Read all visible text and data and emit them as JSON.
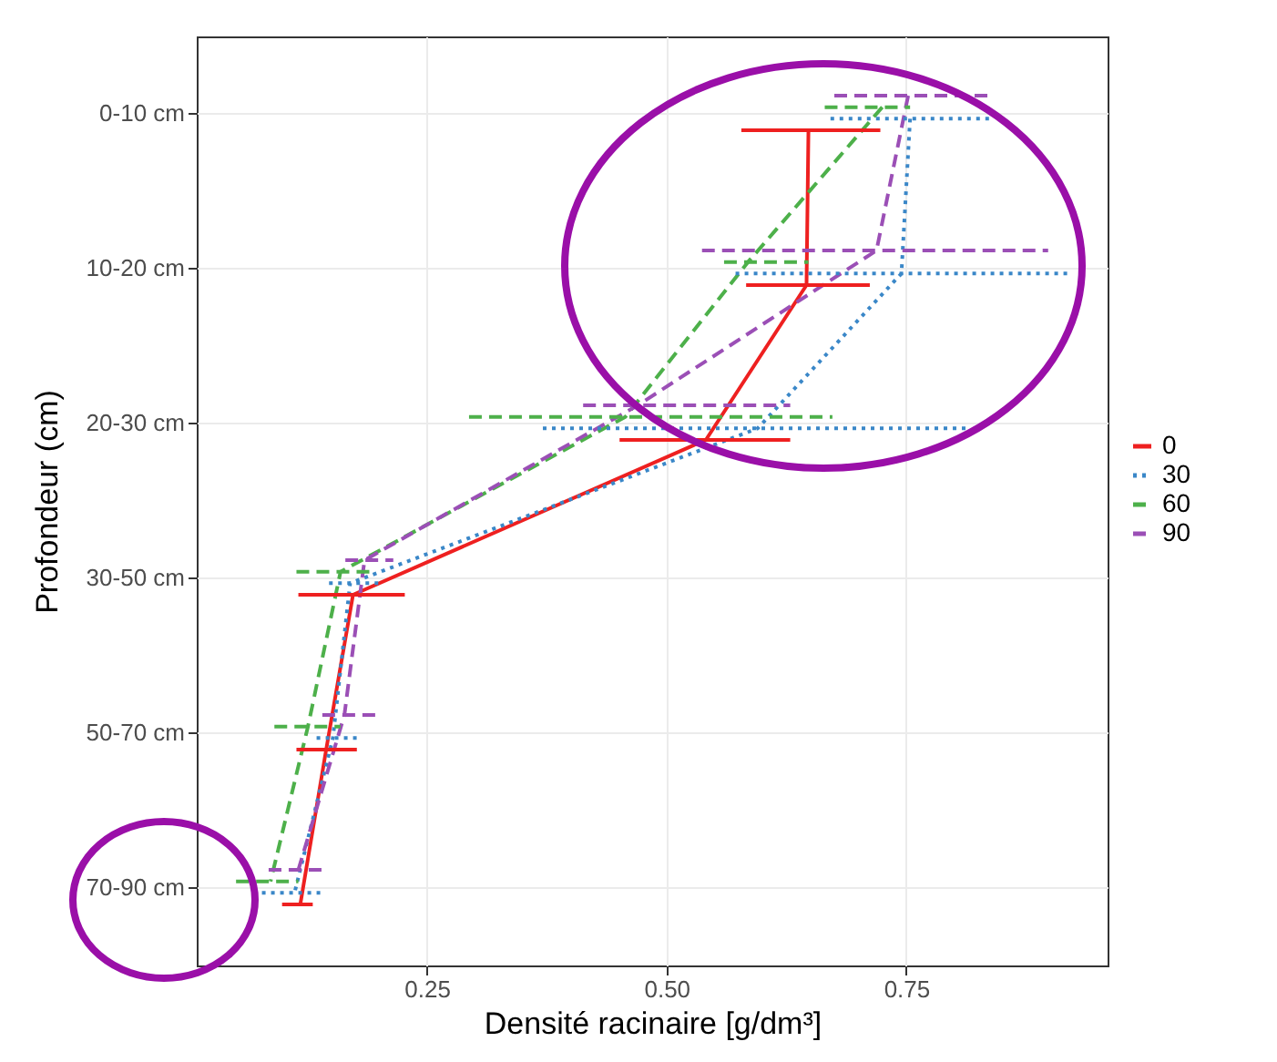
{
  "chart_data": {
    "type": "line",
    "orientation": "horizontal",
    "xlabel": "Densité racinaire [g/dm³]",
    "ylabel": "Profondeur (cm)",
    "categories": [
      "0-10 cm",
      "10-20 cm",
      "20-30 cm",
      "30-50 cm",
      "50-70 cm",
      "70-90 cm"
    ],
    "xlim": [
      0.01,
      0.96
    ],
    "xticks": [
      {
        "value": 0.25,
        "label": "0.25"
      },
      {
        "value": 0.5,
        "label": "0.50"
      },
      {
        "value": 0.75,
        "label": "0.75"
      }
    ],
    "grid": true,
    "legend": "right",
    "series": [
      {
        "name": "0",
        "color": "#ee2020",
        "line_style": "solid",
        "values": [
          0.648,
          0.646,
          0.541,
          0.173,
          0.145,
          0.118
        ],
        "errors": [
          [
            0.578,
            0.723
          ],
          [
            0.583,
            0.712
          ],
          [
            0.451,
            0.629
          ],
          [
            0.116,
            0.227
          ],
          [
            0.114,
            0.177
          ],
          [
            0.099,
            0.131
          ]
        ]
      },
      {
        "name": "30",
        "color": "#3a87c8",
        "line_style": "dotted",
        "values": [
          0.754,
          0.745,
          0.595,
          0.17,
          0.152,
          0.112
        ],
        "errors": [
          [
            0.671,
            0.84
          ],
          [
            0.572,
            0.92
          ],
          [
            0.371,
            0.817
          ],
          [
            0.148,
            0.202
          ],
          [
            0.135,
            0.177
          ],
          [
            0.078,
            0.141
          ]
        ]
      },
      {
        "name": "60",
        "color": "#4db04a",
        "line_style": "dashed",
        "values": [
          0.725,
          0.585,
          0.457,
          0.16,
          0.126,
          0.087
        ],
        "errors": [
          [
            0.665,
            0.754
          ],
          [
            0.56,
            0.648
          ],
          [
            0.294,
            0.673
          ],
          [
            0.114,
            0.196
          ],
          [
            0.091,
            0.16
          ],
          [
            0.051,
            0.116
          ]
        ]
      },
      {
        "name": "90",
        "color": "#9b4fb6",
        "line_style": "dashed",
        "values": [
          0.752,
          0.719,
          0.47,
          0.185,
          0.164,
          0.116
        ],
        "errors": [
          [
            0.675,
            0.84
          ],
          [
            0.537,
            0.898
          ],
          [
            0.413,
            0.629
          ],
          [
            0.165,
            0.215
          ],
          [
            0.141,
            0.198
          ],
          [
            0.085,
            0.141
          ]
        ]
      }
    ]
  }
}
